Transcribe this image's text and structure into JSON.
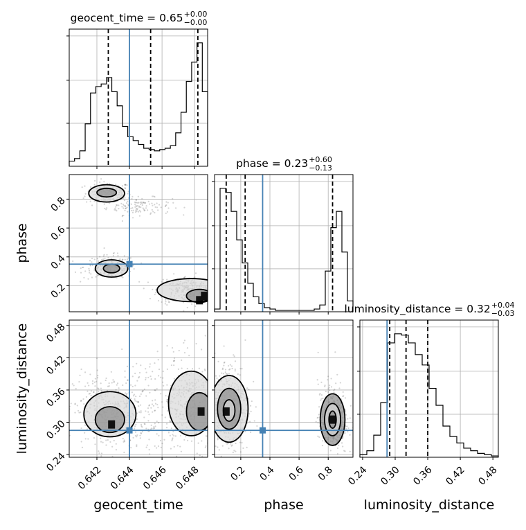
{
  "chart_data": {
    "type": "corner",
    "grid": true,
    "truth_color": "#4682b4",
    "contour_color": "#000000",
    "parameters": [
      {
        "key": "geocent_time",
        "label": "geocent_time",
        "title_main": "geocent_time = 0.65",
        "title_plus": "+0.00",
        "title_minus": "−0.00",
        "range": [
          0.6403,
          0.6488
        ],
        "ticks": [
          0.642,
          0.644,
          0.646,
          0.648
        ],
        "tick_labels": [
          "0.642",
          "0.644",
          "0.646",
          "0.648"
        ],
        "truth": 0.644,
        "quantiles": [
          0.6427,
          0.6453,
          0.6482
        ],
        "hist": [
          0.04,
          0.06,
          0.12,
          0.33,
          0.57,
          0.62,
          0.64,
          0.69,
          0.58,
          0.47,
          0.31,
          0.23,
          0.2,
          0.17,
          0.14,
          0.13,
          0.12,
          0.13,
          0.14,
          0.16,
          0.26,
          0.42,
          0.66,
          0.81,
          0.96,
          0.58
        ]
      },
      {
        "key": "phase",
        "label": "phase",
        "title_main": "phase = 0.23",
        "title_plus": "+0.60",
        "title_minus": "−0.13",
        "range": [
          0.02,
          0.97
        ],
        "ticks": [
          0.2,
          0.4,
          0.6,
          0.8
        ],
        "tick_labels": [
          "0.2",
          "0.4",
          "0.6",
          "0.8"
        ],
        "truth": 0.35,
        "quantiles": [
          0.1,
          0.23,
          0.83
        ],
        "hist": [
          0.02,
          0.91,
          0.88,
          0.74,
          0.53,
          0.36,
          0.21,
          0.11,
          0.06,
          0.03,
          0.02,
          0.01,
          0.01,
          0.01,
          0.01,
          0.01,
          0.01,
          0.01,
          0.02,
          0.05,
          0.3,
          0.62,
          0.74,
          0.44,
          0.08
        ]
      },
      {
        "key": "luminosity_distance",
        "label": "luminosity_distance",
        "title_main": "luminosity_distance = 0.32",
        "title_plus": "+0.04",
        "title_minus": "−0.03",
        "range": [
          0.235,
          0.49
        ],
        "ticks": [
          0.24,
          0.3,
          0.36,
          0.42,
          0.48
        ],
        "tick_labels": [
          "0.24",
          "0.30",
          "0.36",
          "0.42",
          "0.48"
        ],
        "truth": 0.285,
        "quantiles": [
          0.29,
          0.32,
          0.36
        ],
        "hist": [
          0.02,
          0.05,
          0.17,
          0.42,
          0.88,
          0.95,
          0.94,
          0.88,
          0.79,
          0.71,
          0.53,
          0.4,
          0.24,
          0.16,
          0.11,
          0.07,
          0.05,
          0.03,
          0.02,
          0.01
        ]
      }
    ],
    "pairs": [
      {
        "x": "geocent_time",
        "y": "phase",
        "truth": [
          0.644,
          0.35
        ],
        "cloud_modes": [
          {
            "cx": 0.6427,
            "cy": 0.84,
            "sx": 0.0007,
            "sy": 0.04,
            "n": 180
          },
          {
            "cx": 0.6446,
            "cy": 0.75,
            "sx": 0.001,
            "sy": 0.03,
            "n": 120
          },
          {
            "cx": 0.6428,
            "cy": 0.33,
            "sx": 0.0008,
            "sy": 0.04,
            "n": 200
          },
          {
            "cx": 0.6475,
            "cy": 0.17,
            "sx": 0.0009,
            "sy": 0.05,
            "n": 260
          }
        ],
        "contours": [
          {
            "cx": 0.6426,
            "cy": 0.84,
            "rx": 0.0011,
            "ry": 0.06
          },
          {
            "cx": 0.6426,
            "cy": 0.845,
            "rx": 0.0006,
            "ry": 0.03
          },
          {
            "cx": 0.6429,
            "cy": 0.32,
            "rx": 0.001,
            "ry": 0.06
          },
          {
            "cx": 0.6429,
            "cy": 0.32,
            "rx": 0.0005,
            "ry": 0.03
          },
          {
            "cx": 0.6478,
            "cy": 0.17,
            "rx": 0.0021,
            "ry": 0.08
          },
          {
            "cx": 0.6483,
            "cy": 0.13,
            "rx": 0.0008,
            "ry": 0.045
          }
        ],
        "dense": [
          {
            "x": 0.6486,
            "y": 0.13
          },
          {
            "x": 0.6483,
            "y": 0.1
          }
        ]
      },
      {
        "x": "geocent_time",
        "y": "luminosity_distance",
        "truth": [
          0.644,
          0.285
        ],
        "cloud_modes": [
          {
            "cx": 0.6428,
            "cy": 0.32,
            "sx": 0.0011,
            "sy": 0.035,
            "n": 320
          },
          {
            "cx": 0.6478,
            "cy": 0.33,
            "sx": 0.001,
            "sy": 0.045,
            "n": 320
          },
          {
            "cx": 0.6455,
            "cy": 0.33,
            "sx": 0.0022,
            "sy": 0.05,
            "n": 260
          }
        ],
        "contours": [
          {
            "cx": 0.6428,
            "cy": 0.315,
            "rx": 0.0016,
            "ry": 0.042
          },
          {
            "cx": 0.6428,
            "cy": 0.305,
            "rx": 0.0009,
            "ry": 0.024
          },
          {
            "cx": 0.6478,
            "cy": 0.335,
            "rx": 0.0014,
            "ry": 0.06
          },
          {
            "cx": 0.6483,
            "cy": 0.32,
            "rx": 0.0008,
            "ry": 0.035
          }
        ],
        "dense": [
          {
            "x": 0.6429,
            "y": 0.296
          },
          {
            "x": 0.6484,
            "y": 0.32
          }
        ]
      },
      {
        "x": "phase",
        "y": "luminosity_distance",
        "truth": [
          0.35,
          0.285
        ],
        "cloud_modes": [
          {
            "cx": 0.12,
            "cy": 0.33,
            "sx": 0.07,
            "sy": 0.045,
            "n": 420
          },
          {
            "cx": 0.83,
            "cy": 0.305,
            "sx": 0.05,
            "sy": 0.035,
            "n": 320
          }
        ],
        "contours": [
          {
            "cx": 0.12,
            "cy": 0.325,
            "rx": 0.13,
            "ry": 0.062
          },
          {
            "cx": 0.12,
            "cy": 0.325,
            "rx": 0.08,
            "ry": 0.038
          },
          {
            "cx": 0.12,
            "cy": 0.322,
            "rx": 0.04,
            "ry": 0.02
          },
          {
            "cx": 0.83,
            "cy": 0.305,
            "rx": 0.085,
            "ry": 0.048
          },
          {
            "cx": 0.83,
            "cy": 0.305,
            "rx": 0.055,
            "ry": 0.03
          },
          {
            "cx": 0.83,
            "cy": 0.305,
            "rx": 0.025,
            "ry": 0.016
          }
        ],
        "dense": [
          {
            "x": 0.1,
            "y": 0.32
          },
          {
            "x": 0.83,
            "y": 0.305
          }
        ]
      }
    ]
  }
}
